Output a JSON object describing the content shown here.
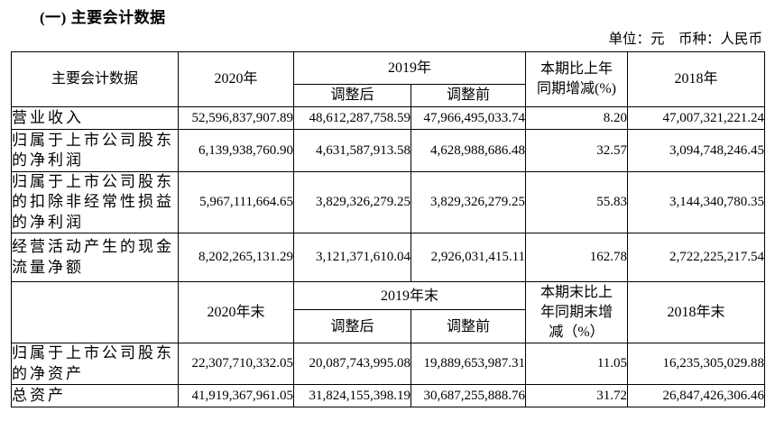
{
  "title": "(一) 主要会计数据",
  "unit_note": "单位：元　币种：人民币",
  "colors": {
    "text": "#000000",
    "border": "#000000",
    "background": "#ffffff"
  },
  "table": {
    "section1": {
      "header": {
        "label": "主要会计数据",
        "y2020": "2020年",
        "y2019": "2019年",
        "adjusted_after": "调整后",
        "adjusted_before": "调整前",
        "change": "本期比上年同期增减(%)",
        "y2018": "2018年"
      },
      "rows": [
        {
          "label": "营业收入",
          "y2020": "52,596,837,907.89",
          "y2019_adjusted": "48,612,287,758.59",
          "y2019_original": "47,966,495,033.74",
          "change_pct": "8.20",
          "y2018": "47,007,321,221.24"
        },
        {
          "label": "归属于上市公司股东的净利润",
          "y2020": "6,139,938,760.90",
          "y2019_adjusted": "4,631,587,913.58",
          "y2019_original": "4,628,988,686.48",
          "change_pct": "32.57",
          "y2018": "3,094,748,246.45"
        },
        {
          "label": "归属于上市公司股东的扣除非经常性损益的净利润",
          "y2020": "5,967,111,664.65",
          "y2019_adjusted": "3,829,326,279.25",
          "y2019_original": "3,829,326,279.25",
          "change_pct": "55.83",
          "y2018": "3,144,340,780.35"
        },
        {
          "label": "经营活动产生的现金流量净额",
          "y2020": "8,202,265,131.29",
          "y2019_adjusted": "3,121,371,610.04",
          "y2019_original": "2,926,031,415.11",
          "change_pct": "162.78",
          "y2018": "2,722,225,217.54"
        }
      ]
    },
    "section2": {
      "header": {
        "label": "",
        "y2020": "2020年末",
        "y2019": "2019年末",
        "adjusted_after": "调整后",
        "adjusted_before": "调整前",
        "change": "本期末比上年同期末增减（%）",
        "y2018": "2018年末"
      },
      "rows": [
        {
          "label": "归属于上市公司股东的净资产",
          "y2020": "22,307,710,332.05",
          "y2019_adjusted": "20,087,743,995.08",
          "y2019_original": "19,889,653,987.31",
          "change_pct": "11.05",
          "y2018": "16,235,305,029.88"
        },
        {
          "label": "总资产",
          "y2020": "41,919,367,961.05",
          "y2019_adjusted": "31,824,155,398.19",
          "y2019_original": "30,687,255,888.76",
          "change_pct": "31.72",
          "y2018": "26,847,426,306.46"
        }
      ]
    }
  }
}
